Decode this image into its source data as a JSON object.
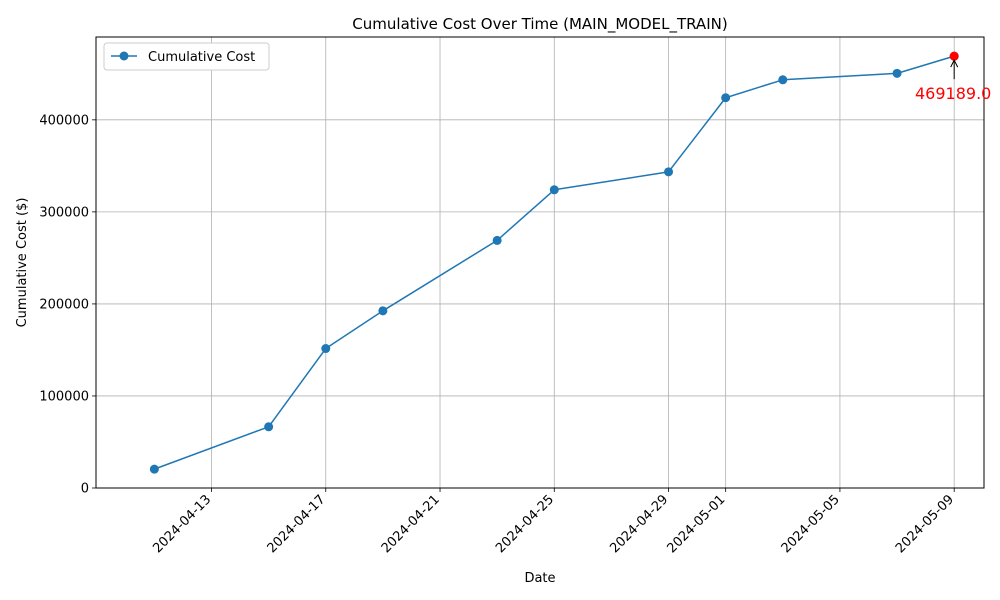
{
  "chart_data": {
    "type": "line",
    "title": "Cumulative Cost Over Time (MAIN_MODEL_TRAIN)",
    "xlabel": "Date",
    "ylabel": "Cumulative Cost ($)",
    "xlim": [
      "2024-04-09",
      "2024-05-10"
    ],
    "ylim": [
      0,
      490000
    ],
    "x_ticks": [
      "2024-04-13",
      "2024-04-17",
      "2024-04-21",
      "2024-04-25",
      "2024-04-29",
      "2024-05-01",
      "2024-05-05",
      "2024-05-09"
    ],
    "y_ticks": [
      0,
      100000,
      200000,
      300000,
      400000
    ],
    "grid": true,
    "legend_position": "upper-left",
    "series": [
      {
        "name": "Cumulative Cost",
        "color": "#1f77b4",
        "marker": "circle",
        "points": [
          {
            "x": "2024-04-11",
            "y": 20500
          },
          {
            "x": "2024-04-15",
            "y": 66500
          },
          {
            "x": "2024-04-17",
            "y": 151500
          },
          {
            "x": "2024-04-19",
            "y": 192500
          },
          {
            "x": "2024-04-23",
            "y": 269000
          },
          {
            "x": "2024-04-25",
            "y": 324000
          },
          {
            "x": "2024-04-29",
            "y": 343500
          },
          {
            "x": "2024-05-01",
            "y": 424000
          },
          {
            "x": "2024-05-03",
            "y": 443500
          },
          {
            "x": "2024-05-07",
            "y": 450500
          },
          {
            "x": "2024-05-09",
            "y": 469189
          }
        ]
      }
    ],
    "annotation": {
      "text": "469189.0",
      "x": "2024-05-09",
      "y": 469189,
      "color": "#ff0000"
    }
  }
}
